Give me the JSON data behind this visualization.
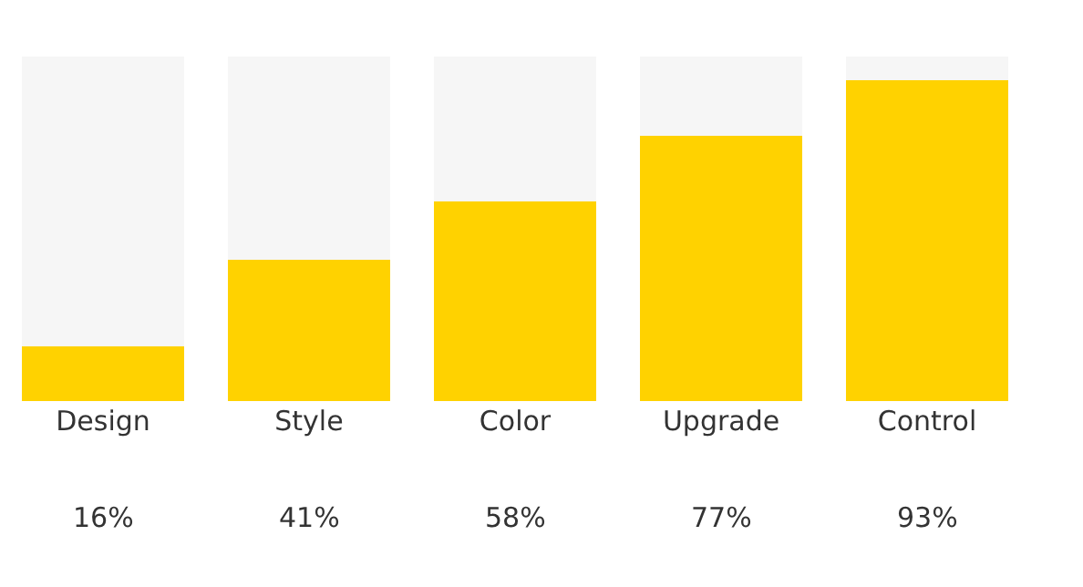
{
  "chart_data": {
    "type": "bar",
    "stacked": true,
    "categories": [
      "Design",
      "Style",
      "Color",
      "Upgrade",
      "Control"
    ],
    "series": [
      {
        "color": "#ffd200",
        "values": [
          16,
          41,
          58,
          77,
          93
        ],
        "value_labels": [
          "16%",
          "41%",
          "58%",
          "77%",
          "93%"
        ]
      },
      {
        "color": "#f6f6f6",
        "values": [
          84,
          59,
          42,
          23,
          7
        ]
      }
    ],
    "ylim": [
      0,
      100
    ],
    "tick_labels": "x"
  }
}
